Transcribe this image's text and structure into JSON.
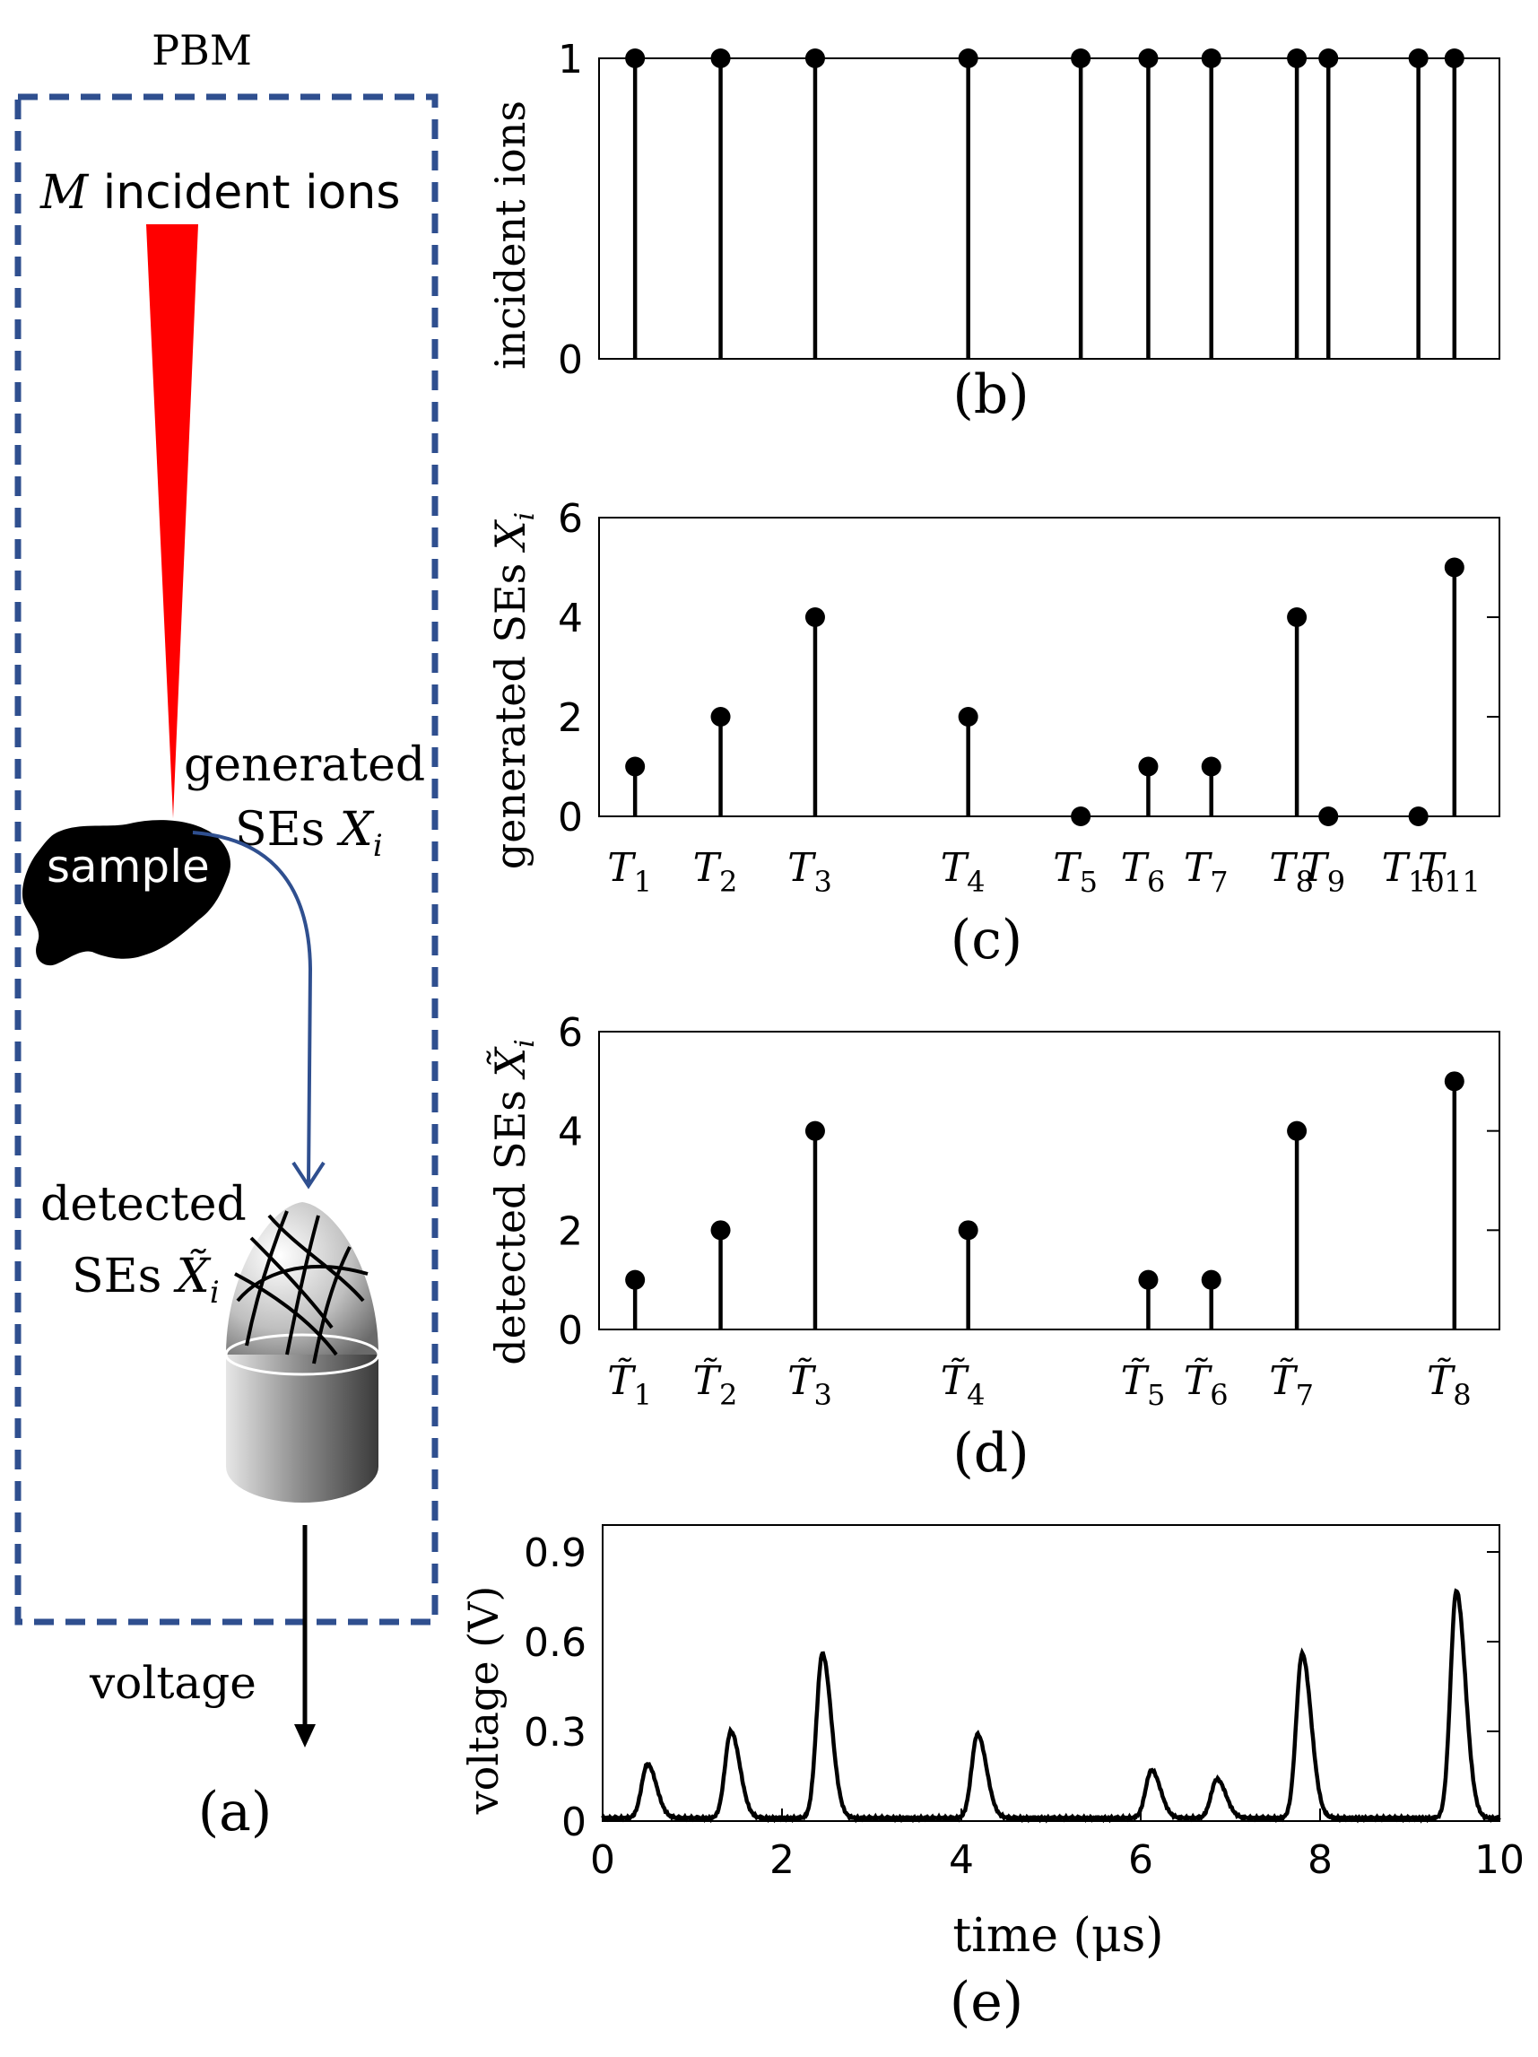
{
  "panel_a": {
    "title": "PBM",
    "ions_label_var": "M",
    "ions_label_text": " incident ions",
    "sample_label": "sample",
    "generated_line1": "generated",
    "generated_line2": "SEs ",
    "generated_var": "X",
    "generated_sub": "i",
    "detected_line1": "detected",
    "detected_line2": "SEs ",
    "detected_var": "X̃",
    "detected_sub": "i",
    "voltage_label": "voltage",
    "caption": "(a)",
    "colors": {
      "box": "#2F4F8F",
      "beam": "#FF0000",
      "arrow": "#2F4F8F"
    }
  },
  "chart_data": [
    {
      "id": "b",
      "type": "stem",
      "caption": "(b)",
      "ylabel": "incident ions",
      "ylim": [
        0,
        1
      ],
      "yticks": [
        "0",
        "1"
      ],
      "x": [
        0.4,
        1.35,
        2.4,
        4.1,
        5.35,
        6.1,
        6.8,
        7.75,
        8.1,
        9.1,
        9.5
      ],
      "values": [
        1,
        1,
        1,
        1,
        1,
        1,
        1,
        1,
        1,
        1,
        1
      ]
    },
    {
      "id": "c",
      "type": "stem",
      "caption": "(c)",
      "ylabel": "generated SEs",
      "ylabel_var": "X",
      "ylabel_sub": "i",
      "ylim": [
        0,
        6
      ],
      "yticks": [
        "0",
        "2",
        "4",
        "6"
      ],
      "x": [
        0.4,
        1.35,
        2.4,
        4.1,
        5.35,
        6.1,
        6.8,
        7.75,
        8.1,
        9.1,
        9.5
      ],
      "values": [
        1,
        2,
        4,
        2,
        0,
        1,
        1,
        4,
        0,
        0,
        5
      ],
      "xlabels": [
        {
          "v": "T",
          "s": "1"
        },
        {
          "v": "T",
          "s": "2"
        },
        {
          "v": "T",
          "s": "3"
        },
        {
          "v": "T",
          "s": "4"
        },
        {
          "v": "T",
          "s": "5"
        },
        {
          "v": "T",
          "s": "6"
        },
        {
          "v": "T",
          "s": "7"
        },
        {
          "v": "T",
          "s": "8"
        },
        {
          "v": "T",
          "s": "9"
        },
        {
          "v": "T",
          "s": "10"
        },
        {
          "v": "T",
          "s": "11"
        }
      ]
    },
    {
      "id": "d",
      "type": "stem",
      "caption": "(d)",
      "ylabel": "detected SEs",
      "ylabel_var": "X̃",
      "ylabel_sub": "i",
      "ylim": [
        0,
        6
      ],
      "yticks": [
        "0",
        "2",
        "4",
        "6"
      ],
      "x": [
        0.4,
        1.35,
        2.4,
        4.1,
        6.1,
        6.8,
        7.75,
        9.5
      ],
      "values": [
        1,
        2,
        4,
        2,
        1,
        1,
        4,
        5
      ],
      "xlabels": [
        {
          "v": "T̃",
          "s": "1"
        },
        {
          "v": "T̃",
          "s": "2"
        },
        {
          "v": "T̃",
          "s": "3"
        },
        {
          "v": "T̃",
          "s": "4"
        },
        {
          "v": "T̃",
          "s": "5"
        },
        {
          "v": "T̃",
          "s": "6"
        },
        {
          "v": "T̃",
          "s": "7"
        },
        {
          "v": "T̃",
          "s": "8"
        }
      ]
    },
    {
      "id": "e",
      "type": "line",
      "caption": "(e)",
      "xlabel": "time (μs)",
      "ylabel": "voltage (V)",
      "xlim": [
        0,
        10
      ],
      "ylim": [
        0,
        0.99
      ],
      "xticks": [
        "0",
        "2",
        "4",
        "6",
        "8",
        "10"
      ],
      "yticks": [
        "0",
        "0.3",
        "0.6",
        "0.9"
      ],
      "baseline": 0.01,
      "pulses": [
        {
          "t": 0.5,
          "peak": 0.19
        },
        {
          "t": 1.43,
          "peak": 0.3
        },
        {
          "t": 2.45,
          "peak": 0.56
        },
        {
          "t": 4.18,
          "peak": 0.29
        },
        {
          "t": 6.12,
          "peak": 0.17
        },
        {
          "t": 6.85,
          "peak": 0.14
        },
        {
          "t": 7.8,
          "peak": 0.56
        },
        {
          "t": 9.52,
          "peak": 0.77
        }
      ]
    }
  ]
}
